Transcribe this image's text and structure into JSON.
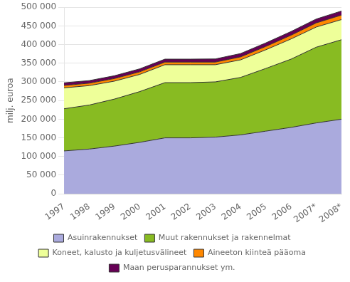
{
  "chart_data": {
    "type": "area",
    "stacked": true,
    "categories": [
      "1997",
      "1998",
      "1999",
      "2000",
      "2001",
      "2002",
      "2003",
      "2004",
      "2005",
      "2006",
      "2007*",
      "2008*"
    ],
    "series": [
      {
        "name": "Asuinrakennukset",
        "color": "#aaaadd",
        "values": [
          115000,
          120000,
          128000,
          138000,
          150000,
          150000,
          152000,
          158000,
          168000,
          178000,
          190000,
          200000
        ]
      },
      {
        "name": "Muut rakennukset ja rakennelmat",
        "color": "#88bb22",
        "values": [
          113000,
          118000,
          126000,
          136000,
          148000,
          148000,
          148000,
          154000,
          168000,
          183000,
          203000,
          213000
        ]
      },
      {
        "name": "Koneet, kalusto ja kuljetusvälineet",
        "color": "#eeff99",
        "values": [
          56000,
          52000,
          48000,
          46000,
          48000,
          48000,
          46000,
          47000,
          50000,
          54000,
          54000,
          54000
        ]
      },
      {
        "name": "Aineeton kiinteä pääoma",
        "color": "#ff8800",
        "values": [
          6500,
          6500,
          7000,
          7000,
          7000,
          7000,
          7000,
          8000,
          9000,
          10000,
          11000,
          12000
        ]
      },
      {
        "name": "Maan perusparannukset ym.",
        "color": "#660055",
        "values": [
          7000,
          7000,
          7500,
          8000,
          8000,
          8000,
          8500,
          9000,
          9500,
          10000,
          10500,
          11000
        ]
      }
    ],
    "ylabel": "milj. euroa",
    "ylim": [
      0,
      500000
    ],
    "yticks": [
      0,
      {
        "value": 50000,
        "label": "50 000"
      },
      {
        "value": 100000,
        "label": "100 000"
      },
      {
        "value": 150000,
        "label": "150 000"
      },
      {
        "value": 200000,
        "label": "200 000"
      },
      {
        "value": 250000,
        "label": "250 000"
      },
      {
        "value": 300000,
        "label": "300 000"
      },
      {
        "value": 350000,
        "label": "350 000"
      },
      {
        "value": 400000,
        "label": "400 000"
      },
      {
        "value": 450000,
        "label": "450 000"
      },
      {
        "value": 500000,
        "label": "500 000"
      }
    ],
    "grid": "y",
    "legend": "bottom"
  }
}
